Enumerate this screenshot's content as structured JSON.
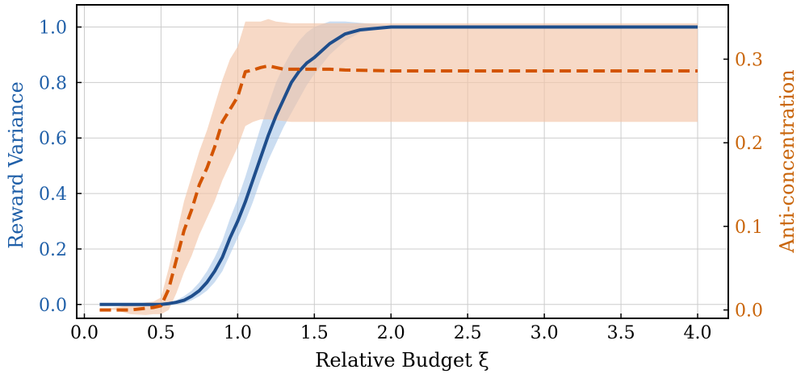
{
  "chart_data": {
    "type": "line",
    "xlabel": "Relative Budget ξ",
    "ylabel_left": "Reward Variance",
    "ylabel_right": "Anti-concentration",
    "xlim": [
      -0.05,
      4.2
    ],
    "ylim_left": [
      -0.05,
      1.08
    ],
    "ylim_right": [
      -0.01,
      0.365
    ],
    "x_ticks": [
      "0.0",
      "0.5",
      "1.0",
      "1.5",
      "2.0",
      "2.5",
      "3.0",
      "3.5",
      "4.0"
    ],
    "x_tick_values": [
      0,
      0.5,
      1.0,
      1.5,
      2.0,
      2.5,
      3.0,
      3.5,
      4.0
    ],
    "y_ticks_left": [
      "0.0",
      "0.2",
      "0.4",
      "0.6",
      "0.8",
      "1.0"
    ],
    "y_tick_values_left": [
      0,
      0.2,
      0.4,
      0.6,
      0.8,
      1.0
    ],
    "y_ticks_right": [
      "0.0",
      "0.1",
      "0.2",
      "0.3"
    ],
    "y_tick_values_right": [
      0,
      0.1,
      0.2,
      0.3
    ],
    "grid": true,
    "colors": {
      "reward": "#1f4e8c",
      "reward_band": "#a9c6e8",
      "reward_axis": "#1f5fa8",
      "anti": "#d35400",
      "anti_band": "#f2c5a8",
      "anti_axis": "#c9650a"
    },
    "series": [
      {
        "axis": "left",
        "style": "solid",
        "x": [
          0.1,
          0.2,
          0.3,
          0.4,
          0.5,
          0.55,
          0.6,
          0.65,
          0.7,
          0.75,
          0.8,
          0.85,
          0.9,
          0.95,
          1.0,
          1.05,
          1.1,
          1.15,
          1.2,
          1.25,
          1.3,
          1.35,
          1.4,
          1.45,
          1.5,
          1.6,
          1.7,
          1.8,
          1.9,
          2.0,
          2.5,
          3.0,
          3.5,
          4.0
        ],
        "y": [
          0.0,
          0.0,
          0.0,
          0.0,
          0.0,
          0.003,
          0.008,
          0.015,
          0.03,
          0.05,
          0.08,
          0.12,
          0.17,
          0.24,
          0.3,
          0.37,
          0.45,
          0.53,
          0.61,
          0.68,
          0.74,
          0.8,
          0.84,
          0.87,
          0.89,
          0.94,
          0.975,
          0.99,
          0.995,
          1.0,
          1.0,
          1.0,
          1.0,
          1.0
        ],
        "lower": [
          0.0,
          0.0,
          0.0,
          0.0,
          0.0,
          0.0,
          0.0,
          0.005,
          0.015,
          0.03,
          0.05,
          0.08,
          0.12,
          0.18,
          0.24,
          0.3,
          0.37,
          0.45,
          0.52,
          0.58,
          0.64,
          0.69,
          0.74,
          0.79,
          0.83,
          0.9,
          0.95,
          0.98,
          0.99,
          1.0,
          1.0,
          1.0,
          1.0,
          1.0
        ],
        "upper": [
          0.0,
          0.0,
          0.0,
          0.0,
          0.002,
          0.006,
          0.015,
          0.03,
          0.05,
          0.08,
          0.12,
          0.17,
          0.23,
          0.31,
          0.38,
          0.46,
          0.55,
          0.64,
          0.72,
          0.8,
          0.86,
          0.91,
          0.95,
          0.98,
          1.0,
          1.02,
          1.02,
          1.015,
          1.01,
          1.005,
          1.0,
          1.0,
          1.0,
          1.0
        ]
      },
      {
        "axis": "right",
        "style": "dashed",
        "x": [
          0.1,
          0.2,
          0.3,
          0.4,
          0.45,
          0.5,
          0.55,
          0.6,
          0.65,
          0.7,
          0.75,
          0.8,
          0.85,
          0.9,
          0.95,
          1.0,
          1.05,
          1.1,
          1.15,
          1.2,
          1.25,
          1.3,
          1.35,
          1.4,
          1.5,
          1.6,
          1.7,
          2.0,
          2.5,
          3.0,
          3.5,
          4.0
        ],
        "y": [
          0.0,
          0.0,
          0.0,
          0.002,
          0.003,
          0.005,
          0.025,
          0.06,
          0.095,
          0.12,
          0.15,
          0.17,
          0.195,
          0.225,
          0.24,
          0.255,
          0.285,
          0.287,
          0.29,
          0.292,
          0.29,
          0.288,
          0.288,
          0.288,
          0.288,
          0.288,
          0.287,
          0.286,
          0.286,
          0.286,
          0.286,
          0.286
        ],
        "lower": [
          0.0,
          0.0,
          -0.005,
          -0.006,
          -0.005,
          -0.005,
          0.0,
          0.02,
          0.045,
          0.065,
          0.09,
          0.11,
          0.13,
          0.155,
          0.175,
          0.195,
          0.22,
          0.225,
          0.228,
          0.228,
          0.227,
          0.226,
          0.225,
          0.225,
          0.225,
          0.225,
          0.225,
          0.225,
          0.225,
          0.225,
          0.225,
          0.225
        ],
        "upper": [
          0.0,
          0.003,
          0.006,
          0.009,
          0.01,
          0.015,
          0.05,
          0.09,
          0.13,
          0.16,
          0.19,
          0.215,
          0.245,
          0.275,
          0.3,
          0.315,
          0.345,
          0.345,
          0.345,
          0.348,
          0.345,
          0.344,
          0.343,
          0.343,
          0.343,
          0.343,
          0.343,
          0.343,
          0.343,
          0.343,
          0.343,
          0.343
        ]
      }
    ]
  }
}
